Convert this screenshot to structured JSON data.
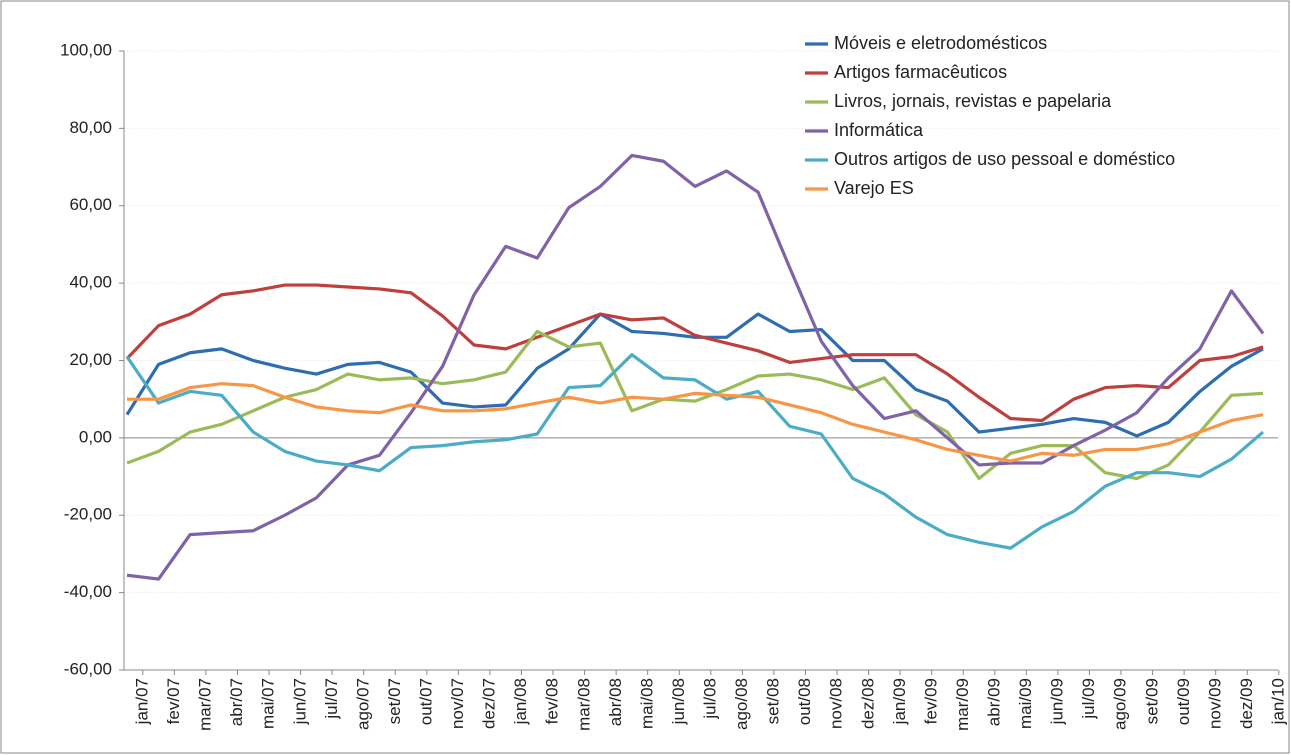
{
  "chart_data": {
    "type": "line",
    "categories": [
      "jan/07",
      "fev/07",
      "mar/07",
      "abr/07",
      "mai/07",
      "jun/07",
      "jul/07",
      "ago/07",
      "set/07",
      "out/07",
      "nov/07",
      "dez/07",
      "jan/08",
      "fev/08",
      "mar/08",
      "abr/08",
      "mai/08",
      "jun/08",
      "jul/08",
      "ago/08",
      "set/08",
      "out/08",
      "nov/08",
      "dez/08",
      "jan/09",
      "fev/09",
      "mar/09",
      "abr/09",
      "mai/09",
      "jun/09",
      "jul/09",
      "ago/09",
      "set/09",
      "out/09",
      "nov/09",
      "dez/09",
      "jan/10"
    ],
    "series": [
      {
        "name": "Móveis e eletrodomésticos",
        "color": "#2e6db0",
        "values": [
          6,
          19,
          22,
          23,
          20,
          18,
          16.5,
          19,
          19.5,
          17,
          9,
          8,
          8.5,
          18,
          23,
          32,
          27.5,
          27,
          26,
          26,
          32,
          27.5,
          28,
          20,
          20,
          12.5,
          9.5,
          1.5,
          2.5,
          3.5,
          5,
          4,
          0.5,
          4,
          12,
          18.5,
          23
        ]
      },
      {
        "name": "Artigos farmacêuticos",
        "color": "#be3f3c",
        "values": [
          20.5,
          29,
          32,
          37,
          38,
          39.5,
          39.5,
          39,
          38.5,
          37.5,
          31.5,
          24,
          23,
          26,
          29,
          32,
          30.5,
          31,
          26.5,
          24.5,
          22.5,
          19.5,
          20.5,
          21.5,
          21.5,
          21.5,
          16.5,
          10.5,
          5,
          4.5,
          10,
          13,
          13.5,
          13,
          20,
          21,
          23.5
        ]
      },
      {
        "name": "Livros, jornais, revistas e papelaria",
        "color": "#9bbb59",
        "values": [
          -6.5,
          -3.5,
          1.5,
          3.5,
          7,
          10.5,
          12.5,
          16.5,
          15,
          15.5,
          14,
          15,
          17,
          27.5,
          23.5,
          24.5,
          7,
          10,
          9.5,
          12.5,
          16,
          16.5,
          15,
          12.5,
          15.5,
          6,
          1.5,
          -10.5,
          -4,
          -2,
          -2,
          -9,
          -10.5,
          -7,
          1.5,
          11,
          11.5
        ]
      },
      {
        "name": "Informática",
        "color": "#7f62a8",
        "values": [
          -35.5,
          -36.5,
          -25,
          -24.5,
          -24,
          -20,
          -15.5,
          -7,
          -4.5,
          6.5,
          18.5,
          37,
          49.5,
          46.5,
          59.5,
          65,
          73,
          71.5,
          65,
          69,
          63.5,
          44,
          25,
          13.5,
          5,
          7,
          0,
          -7,
          -6.5,
          -6.5,
          -2,
          2,
          6.5,
          15.5,
          23,
          38,
          27
        ]
      },
      {
        "name": "Outros artigos de uso pessoal e doméstico",
        "color": "#4bacc6",
        "values": [
          21,
          9,
          12,
          11,
          1.5,
          -3.5,
          -6,
          -7,
          -8.5,
          -2.5,
          -2,
          -1,
          -0.5,
          1,
          13,
          13.5,
          21.5,
          15.5,
          15,
          10,
          12,
          3,
          1,
          -10.5,
          -14.5,
          -20.5,
          -25,
          -27,
          -28.5,
          -23,
          -19,
          -12.5,
          -9,
          -9,
          -10,
          -5.5,
          1.5
        ]
      },
      {
        "name": "Varejo ES",
        "color": "#f79646",
        "values": [
          10,
          10,
          13,
          14,
          13.5,
          10.5,
          8,
          7,
          6.5,
          8.5,
          7,
          7,
          7.5,
          9,
          10.5,
          9,
          10.5,
          10,
          11.5,
          11,
          10.5,
          8.5,
          6.5,
          3.5,
          1.5,
          -0.5,
          -3,
          -4.5,
          -6,
          -4,
          -4.5,
          -3,
          -3,
          -1.5,
          1.5,
          4.5,
          6
        ]
      }
    ],
    "ylim": [
      -60,
      100
    ],
    "yticks": [
      {
        "value": -60,
        "label": "-60,00"
      },
      {
        "value": -40,
        "label": "-40,00"
      },
      {
        "value": -20,
        "label": "-20,00"
      },
      {
        "value": 0,
        "label": "0,00"
      },
      {
        "value": 20,
        "label": "20,00"
      },
      {
        "value": 40,
        "label": "40,00"
      },
      {
        "value": 60,
        "label": "60,00"
      },
      {
        "value": 80,
        "label": "80,00"
      },
      {
        "value": 100,
        "label": "100,00"
      }
    ],
    "grid": true,
    "legend": "top-right"
  }
}
